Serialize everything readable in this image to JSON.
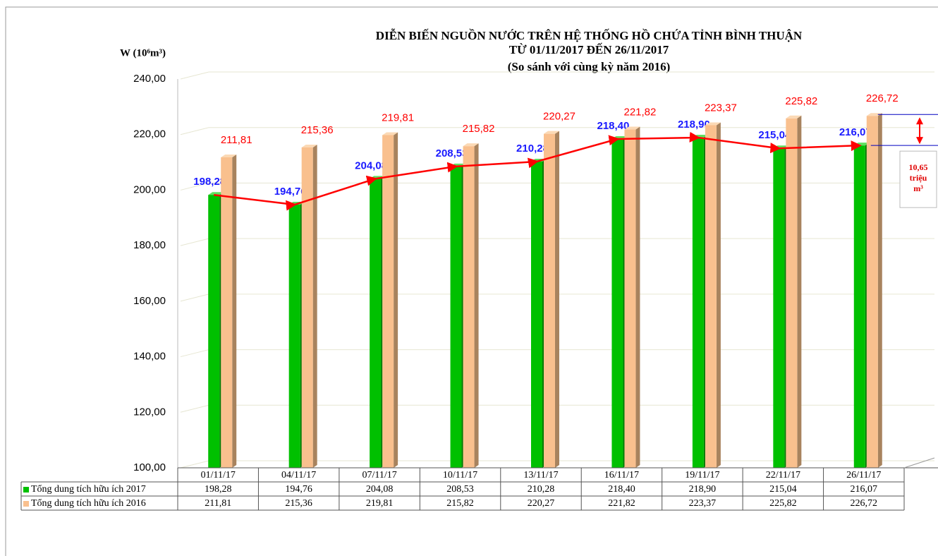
{
  "chart_data": {
    "type": "bar",
    "title": [
      "DIỄN BIẾN NGUỒN NƯỚC TRÊN HỆ THỐNG HỒ CHỨA TỈNH BÌNH THUẬN",
      "TỪ 01/11/2017 ĐẾN 26/11/2017",
      "(So sánh với cùng kỳ năm 2016)"
    ],
    "y_axis_label": "W (10⁶m³)",
    "categories": [
      "01/11/17",
      "04/11/17",
      "07/11/17",
      "10/11/17",
      "13/11/17",
      "16/11/17",
      "19/11/17",
      "22/11/17",
      "26/11/17"
    ],
    "series": [
      {
        "name": "Tổng dung tích hữu ích 2017",
        "color": "#00c000",
        "values": [
          198.28,
          194.76,
          204.08,
          208.53,
          210.28,
          218.4,
          218.9,
          215.04,
          216.07
        ],
        "value_labels": [
          "198,28",
          "194,76",
          "204,08",
          "208,53",
          "210,28",
          "218,40",
          "218,90",
          "215,04",
          "216,07"
        ]
      },
      {
        "name": "Tổng dung tích hữu ích 2016",
        "color": "#f9c08e",
        "values": [
          211.81,
          215.36,
          219.81,
          215.82,
          220.27,
          221.82,
          223.37,
          225.82,
          226.72
        ],
        "value_labels": [
          "211,81",
          "215,36",
          "219,81",
          "215,82",
          "220,27",
          "221,82",
          "223,37",
          "225,82",
          "226,72"
        ]
      }
    ],
    "ylim": [
      100,
      240
    ],
    "yticks": [
      {
        "value": 100,
        "label": "100,00"
      },
      {
        "value": 120,
        "label": "120,00"
      },
      {
        "value": 140,
        "label": "140,00"
      },
      {
        "value": 160,
        "label": "160,00"
      },
      {
        "value": 180,
        "label": "180,00"
      },
      {
        "value": 200,
        "label": "200,00"
      },
      {
        "value": 220,
        "label": "220,00"
      },
      {
        "value": 240,
        "label": "240,00"
      }
    ],
    "grid": true,
    "annotation": [
      "10,65",
      "triệu",
      "m³"
    ]
  }
}
